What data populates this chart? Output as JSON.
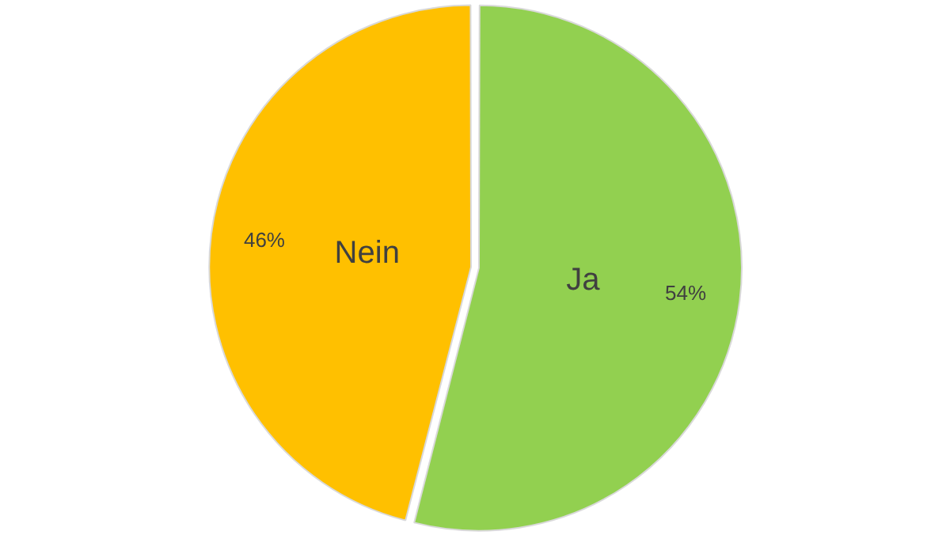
{
  "chart_data": {
    "type": "pie",
    "categories": [
      "Ja",
      "Nein"
    ],
    "values": [
      54,
      46
    ],
    "value_labels": [
      "54%",
      "46%"
    ],
    "colors": [
      "#92d050",
      "#ffc000"
    ],
    "legend": false
  }
}
